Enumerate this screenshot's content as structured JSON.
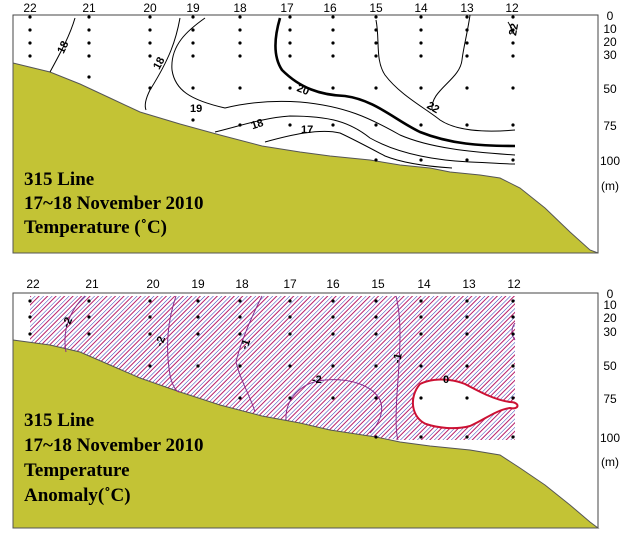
{
  "chart_data": [
    {
      "type": "contour",
      "section": "temperature",
      "stations": [
        "22",
        "21",
        "20",
        "19",
        "18",
        "17",
        "16",
        "15",
        "14",
        "13",
        "12"
      ],
      "depth_ticks": [
        "0",
        "10",
        "20",
        "30",
        "50",
        "75",
        "100"
      ],
      "depth_unit": "(m)",
      "title_lines": [
        "315 Line",
        "17~18 November 2010",
        "Temperature (˚C)"
      ],
      "contour_levels": [
        {
          "label": "17",
          "value": 17
        },
        {
          "label": "18",
          "value": 18
        },
        {
          "label": "19",
          "value": 19
        },
        {
          "label": "20",
          "value": 20
        },
        {
          "label": "22",
          "value": 22
        }
      ],
      "contour_label_positions": [
        {
          "label": "18"
        },
        {
          "label": "18"
        },
        {
          "label": "19"
        },
        {
          "label": "18"
        },
        {
          "label": "17"
        },
        {
          "label": "20"
        },
        {
          "label": "22"
        },
        {
          "label": "22"
        }
      ],
      "colors": {
        "seabed": "#c3c335",
        "emphasized_isotherm": "#000000"
      }
    },
    {
      "type": "contour",
      "section": "temperature anomaly",
      "stations": [
        "22",
        "21",
        "20",
        "19",
        "18",
        "17",
        "16",
        "15",
        "14",
        "13",
        "12"
      ],
      "depth_ticks": [
        "0",
        "10",
        "20",
        "30",
        "50",
        "75",
        "100"
      ],
      "depth_unit": "(m)",
      "title_lines": [
        "315 Line",
        "17~18 November 2010",
        "Temperature",
        "Anomaly(˚C)"
      ],
      "contour_levels": [
        {
          "label": "-2",
          "value": -2
        },
        {
          "label": "-1",
          "value": -1
        },
        {
          "label": "0",
          "value": 0
        }
      ],
      "contour_label_positions": [
        {
          "label": "-2"
        },
        {
          "label": "-2"
        },
        {
          "label": "-1"
        },
        {
          "label": "-2"
        },
        {
          "label": "-1"
        },
        {
          "label": "0"
        }
      ],
      "negative_anomaly_hatched": true,
      "colors": {
        "seabed": "#c3c335",
        "hatch_blue": "#2f3fb8",
        "hatch_red": "#b8206a",
        "contour": "#8a2a8a",
        "zero_contour": "#cc1133"
      }
    }
  ]
}
